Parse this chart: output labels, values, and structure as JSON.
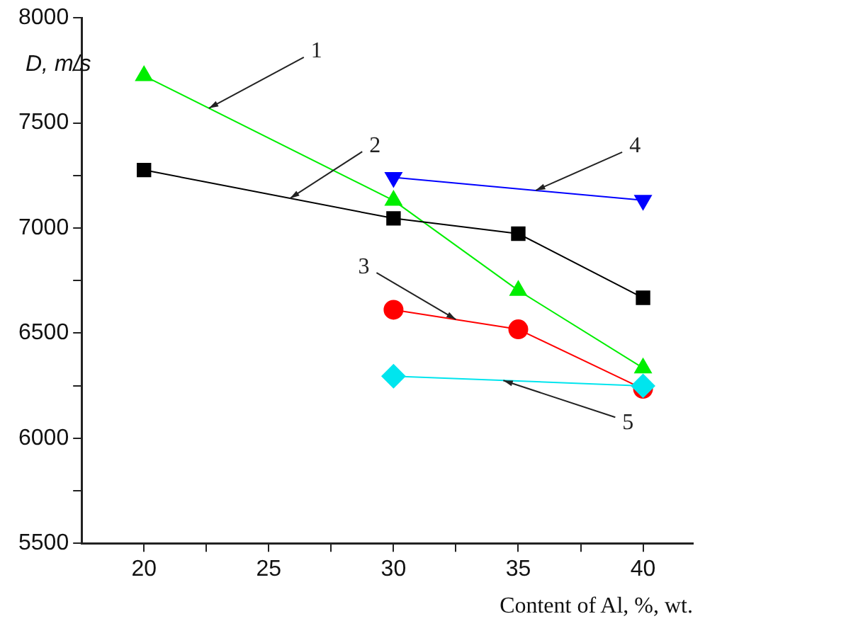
{
  "chart_data": {
    "type": "line",
    "xlabel": "Content of Al, %, wt.",
    "ylabel": "D, m/s",
    "xlim": [
      17.5,
      42
    ],
    "xticks": [
      20,
      {
        "value": 22.5,
        "label": null
      },
      25,
      {
        "value": 27.5,
        "label": null
      },
      30,
      {
        "value": 32.5,
        "label": null
      },
      35,
      {
        "value": 37.5,
        "label": null
      },
      40
    ],
    "ylim": [
      5500,
      8000
    ],
    "yticks": [
      5500,
      {
        "value": 5750,
        "label": null
      },
      6000,
      {
        "value": 6250,
        "label": null
      },
      6500,
      {
        "value": 6750,
        "label": null
      },
      7000,
      {
        "value": 7250,
        "label": null
      },
      7500,
      {
        "value": 7750,
        "label": null
      },
      8000
    ],
    "grid": false,
    "legend": false,
    "line_style": "solid",
    "series": [
      {
        "color": "#00ee00",
        "marker": "triangle",
        "x": [
          20,
          30,
          35,
          40
        ],
        "values": [
          7724,
          7131,
          6703,
          6334
        ]
      },
      {
        "color": "#000000",
        "marker": "square",
        "x": [
          20,
          30,
          35,
          40
        ],
        "values": [
          7276,
          7046,
          6973,
          6668
        ]
      },
      {
        "color": "#ff0000",
        "marker": "circle",
        "x": [
          30,
          35,
          40
        ],
        "values": [
          6611,
          6518,
          6235
        ]
      },
      {
        "color": "#0000ff",
        "marker": "triangle_down",
        "x": [
          30,
          40
        ],
        "values": [
          7241,
          7132
        ]
      },
      {
        "color": "#00e5ee",
        "marker": "diamond",
        "x": [
          30,
          40
        ],
        "values": [
          6295,
          6249
        ]
      }
    ],
    "annotations": [
      {
        "text": "1",
        "x": 22.6,
        "y": 7570
      },
      {
        "text": "2",
        "x": 25.85,
        "y": 7141
      },
      {
        "text": "3",
        "x": 32.5,
        "y": 6565
      },
      {
        "text": "4",
        "x": 35.7,
        "y": 7179
      },
      {
        "text": "5",
        "x": 34.4,
        "y": 6275
      }
    ]
  }
}
